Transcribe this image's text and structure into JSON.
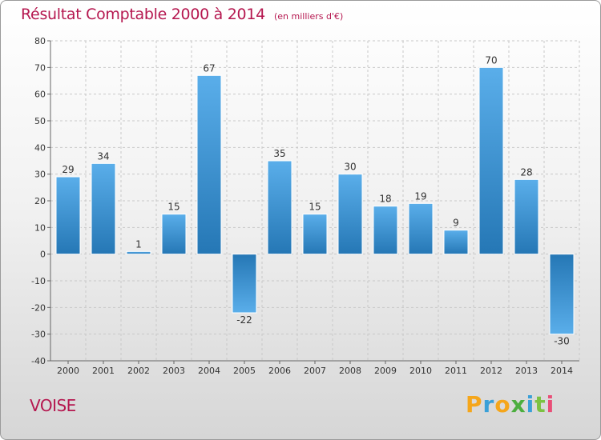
{
  "header": {
    "title": "Résultat Comptable 2000 à 2014",
    "unit": "(en milliers d'€)"
  },
  "footer": {
    "commune": "VOISE",
    "logo_text": "Proxiti"
  },
  "colors": {
    "title": "#b5174f",
    "bar_light": "#5aaeea",
    "bar_dark": "#2577b5"
  },
  "chart_data": {
    "type": "bar",
    "title": "Résultat Comptable 2000 à 2014",
    "subtitle": "(en milliers d'€)",
    "xlabel": "",
    "ylabel": "",
    "ylim": [
      -40,
      80
    ],
    "yticks": [
      -40,
      -30,
      -20,
      -10,
      0,
      10,
      20,
      30,
      40,
      50,
      60,
      70,
      80
    ],
    "grid": true,
    "categories": [
      "2000",
      "2001",
      "2002",
      "2003",
      "2004",
      "2005",
      "2006",
      "2007",
      "2008",
      "2009",
      "2010",
      "2011",
      "2012",
      "2013",
      "2014"
    ],
    "values": [
      29,
      34,
      1,
      15,
      67,
      -22,
      35,
      15,
      30,
      18,
      19,
      9,
      70,
      28,
      -30
    ]
  }
}
